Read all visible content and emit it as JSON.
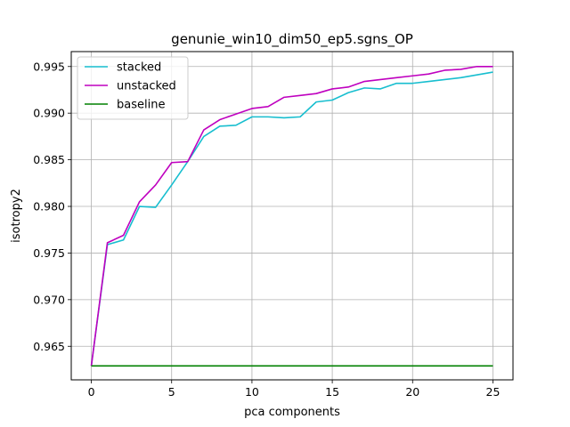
{
  "chart_data": {
    "type": "line",
    "title": "genunie_win10_dim50_ep5.sgns_OP",
    "xlabel": "pca components",
    "ylabel": "isotropy2",
    "xlim": [
      -1.25,
      26.25
    ],
    "ylim": [
      0.9614,
      0.9966
    ],
    "xticks": [
      0,
      5,
      10,
      15,
      20,
      25
    ],
    "yticks": [
      0.965,
      0.97,
      0.975,
      0.98,
      0.985,
      0.99,
      0.995
    ],
    "ytick_labels": [
      "0.965",
      "0.970",
      "0.975",
      "0.980",
      "0.985",
      "0.990",
      "0.995"
    ],
    "grid": true,
    "legend_position": "top-left",
    "x": [
      0,
      1,
      2,
      3,
      4,
      5,
      6,
      7,
      8,
      9,
      10,
      11,
      12,
      13,
      14,
      15,
      16,
      17,
      18,
      19,
      20,
      21,
      22,
      23,
      24,
      25
    ],
    "series": [
      {
        "name": "stacked",
        "color": "#17becf",
        "values": [
          0.9629,
          0.9759,
          0.9764,
          0.98,
          0.9799,
          0.9823,
          0.9848,
          0.9875,
          0.9886,
          0.9887,
          0.9896,
          0.9896,
          0.9895,
          0.9896,
          0.9912,
          0.9914,
          0.9922,
          0.9927,
          0.9926,
          0.9932,
          0.9932,
          0.9934,
          0.9936,
          0.9938,
          0.9941,
          0.9944
        ]
      },
      {
        "name": "unstacked",
        "color": "#bf00bf",
        "values": [
          0.9629,
          0.9761,
          0.9769,
          0.9805,
          0.9823,
          0.9847,
          0.9848,
          0.9882,
          0.9893,
          0.9899,
          0.9905,
          0.9907,
          0.9917,
          0.9919,
          0.9921,
          0.9926,
          0.9928,
          0.9934,
          0.9936,
          0.9938,
          0.994,
          0.9942,
          0.9946,
          0.9947,
          0.995,
          0.995
        ]
      },
      {
        "name": "baseline",
        "color": "#008000",
        "values": [
          0.9629,
          0.9629,
          0.9629,
          0.9629,
          0.9629,
          0.9629,
          0.9629,
          0.9629,
          0.9629,
          0.9629,
          0.9629,
          0.9629,
          0.9629,
          0.9629,
          0.9629,
          0.9629,
          0.9629,
          0.9629,
          0.9629,
          0.9629,
          0.9629,
          0.9629,
          0.9629,
          0.9629,
          0.9629,
          0.9629
        ]
      }
    ]
  }
}
